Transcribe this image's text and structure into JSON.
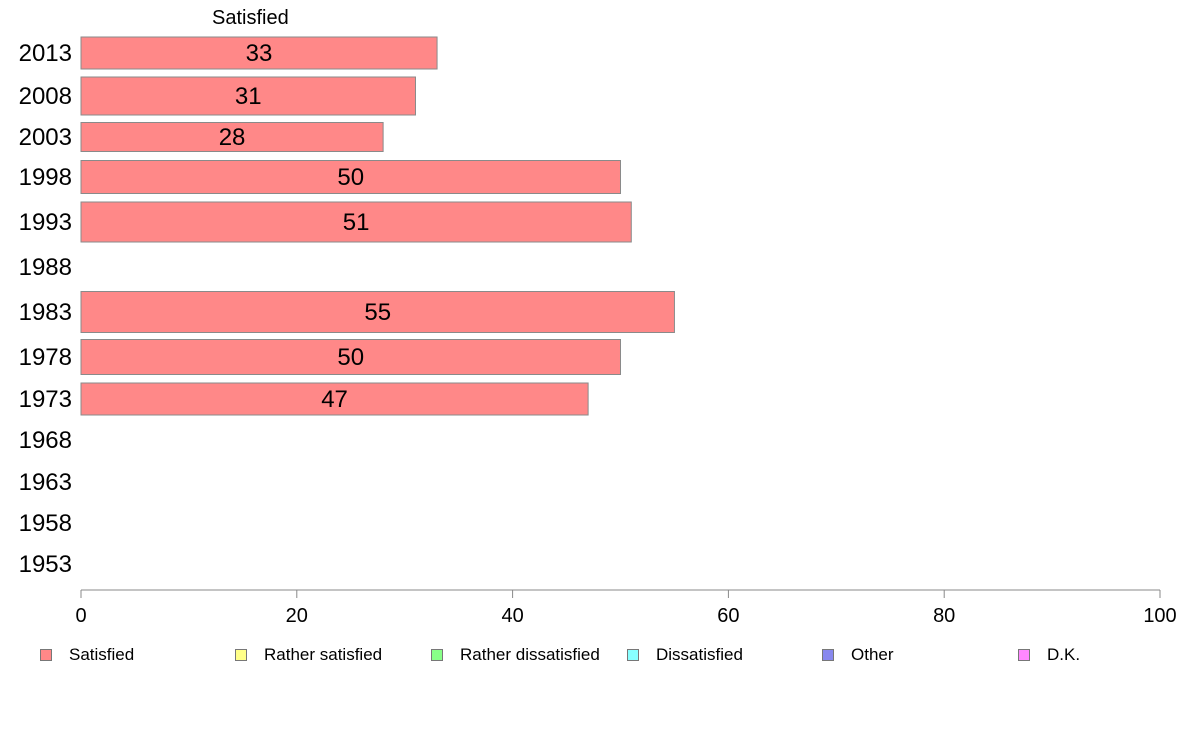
{
  "chart_data": {
    "type": "bar",
    "orientation": "horizontal",
    "title": "Satisfied",
    "categories": [
      "2013",
      "2008",
      "2003",
      "1998",
      "1993",
      "1988",
      "1983",
      "1978",
      "1973",
      "1968",
      "1963",
      "1958",
      "1953"
    ],
    "series": [
      {
        "name": "Satisfied",
        "color": "#ff8888",
        "values": [
          33,
          31,
          28,
          50,
          51,
          null,
          55,
          50,
          47,
          null,
          null,
          null,
          null
        ]
      }
    ],
    "xlim": [
      0,
      100
    ],
    "xticks": [
      "0",
      "20",
      "40",
      "60",
      "80",
      "100"
    ],
    "grid": false,
    "legend_position": "bottom",
    "legend": [
      {
        "label": "Satisfied",
        "color": "#ff8888"
      },
      {
        "label": "Rather satisfied",
        "color": "#ffff88"
      },
      {
        "label": "Rather dissatisfied",
        "color": "#88ff88"
      },
      {
        "label": "Dissatisfied",
        "color": "#88ffff"
      },
      {
        "label": "Other",
        "color": "#8888ee"
      },
      {
        "label": "D.K.",
        "color": "#ff88ff"
      }
    ]
  }
}
